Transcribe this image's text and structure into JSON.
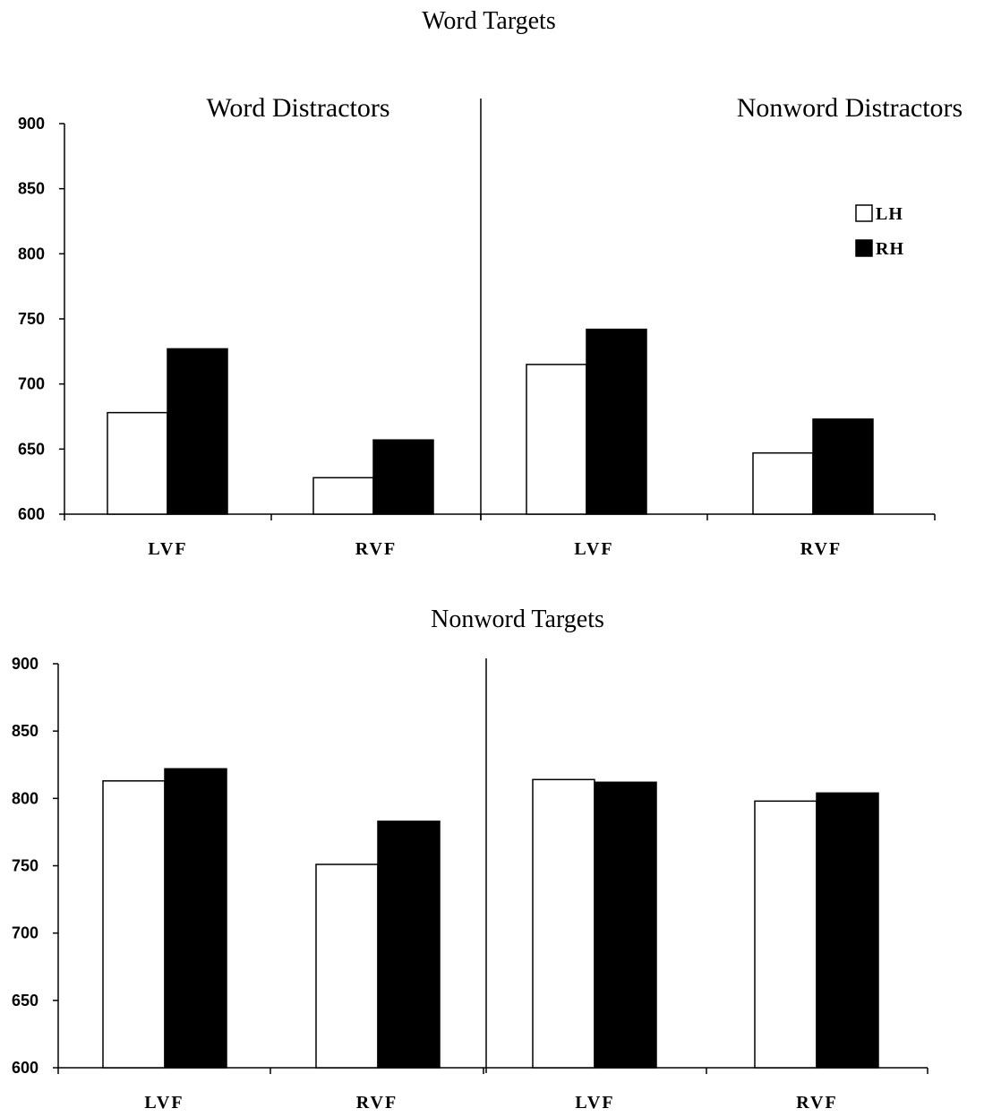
{
  "chart_data": [
    {
      "type": "bar",
      "title": "Word Targets",
      "panels": [
        "Word Distractors",
        "Nonword Distractors"
      ],
      "categories": [
        "LVF",
        "RVF",
        "LVF",
        "RVF"
      ],
      "series": [
        {
          "name": "LH",
          "color": "#ffffff",
          "values": [
            678,
            628,
            715,
            647
          ]
        },
        {
          "name": "RH",
          "color": "#000000",
          "values": [
            727,
            657,
            742,
            673
          ]
        }
      ],
      "yticks": [
        "900",
        "850",
        "800",
        "750",
        "700",
        "650",
        "600"
      ],
      "ylim": [
        600,
        900
      ],
      "legend": "top-right"
    },
    {
      "type": "bar",
      "title": "Nonword Targets",
      "panels": [
        "",
        ""
      ],
      "categories": [
        "LVF",
        "RVF",
        "LVF",
        "RVF"
      ],
      "series": [
        {
          "name": "LH",
          "color": "#ffffff",
          "values": [
            813,
            751,
            814,
            798
          ]
        },
        {
          "name": "RH",
          "color": "#000000",
          "values": [
            822,
            783,
            812,
            804
          ]
        }
      ],
      "yticks": [
        "900",
        "850",
        "800",
        "750",
        "700",
        "650",
        "600"
      ],
      "ylim": [
        600,
        900
      ],
      "legend": "none"
    }
  ]
}
